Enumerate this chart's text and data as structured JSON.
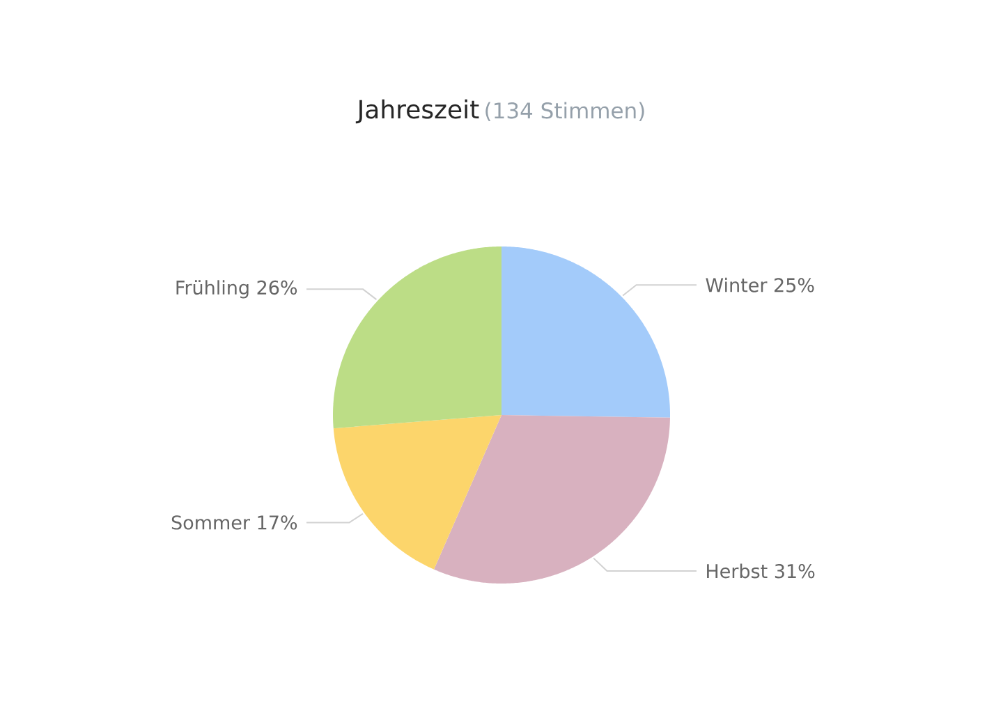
{
  "chart_data": {
    "type": "pie",
    "title": "Jahreszeit",
    "subtitle": "(134 Stimmen)",
    "categories": [
      "Winter",
      "Herbst",
      "Sommer",
      "Frühling"
    ],
    "values": [
      25,
      31,
      17,
      26
    ],
    "colors": [
      "#a3cbfa",
      "#d8b1bf",
      "#fcd56b",
      "#bcdd86"
    ],
    "value_labels": [
      "25%",
      "31%",
      "17%",
      "26%"
    ]
  }
}
